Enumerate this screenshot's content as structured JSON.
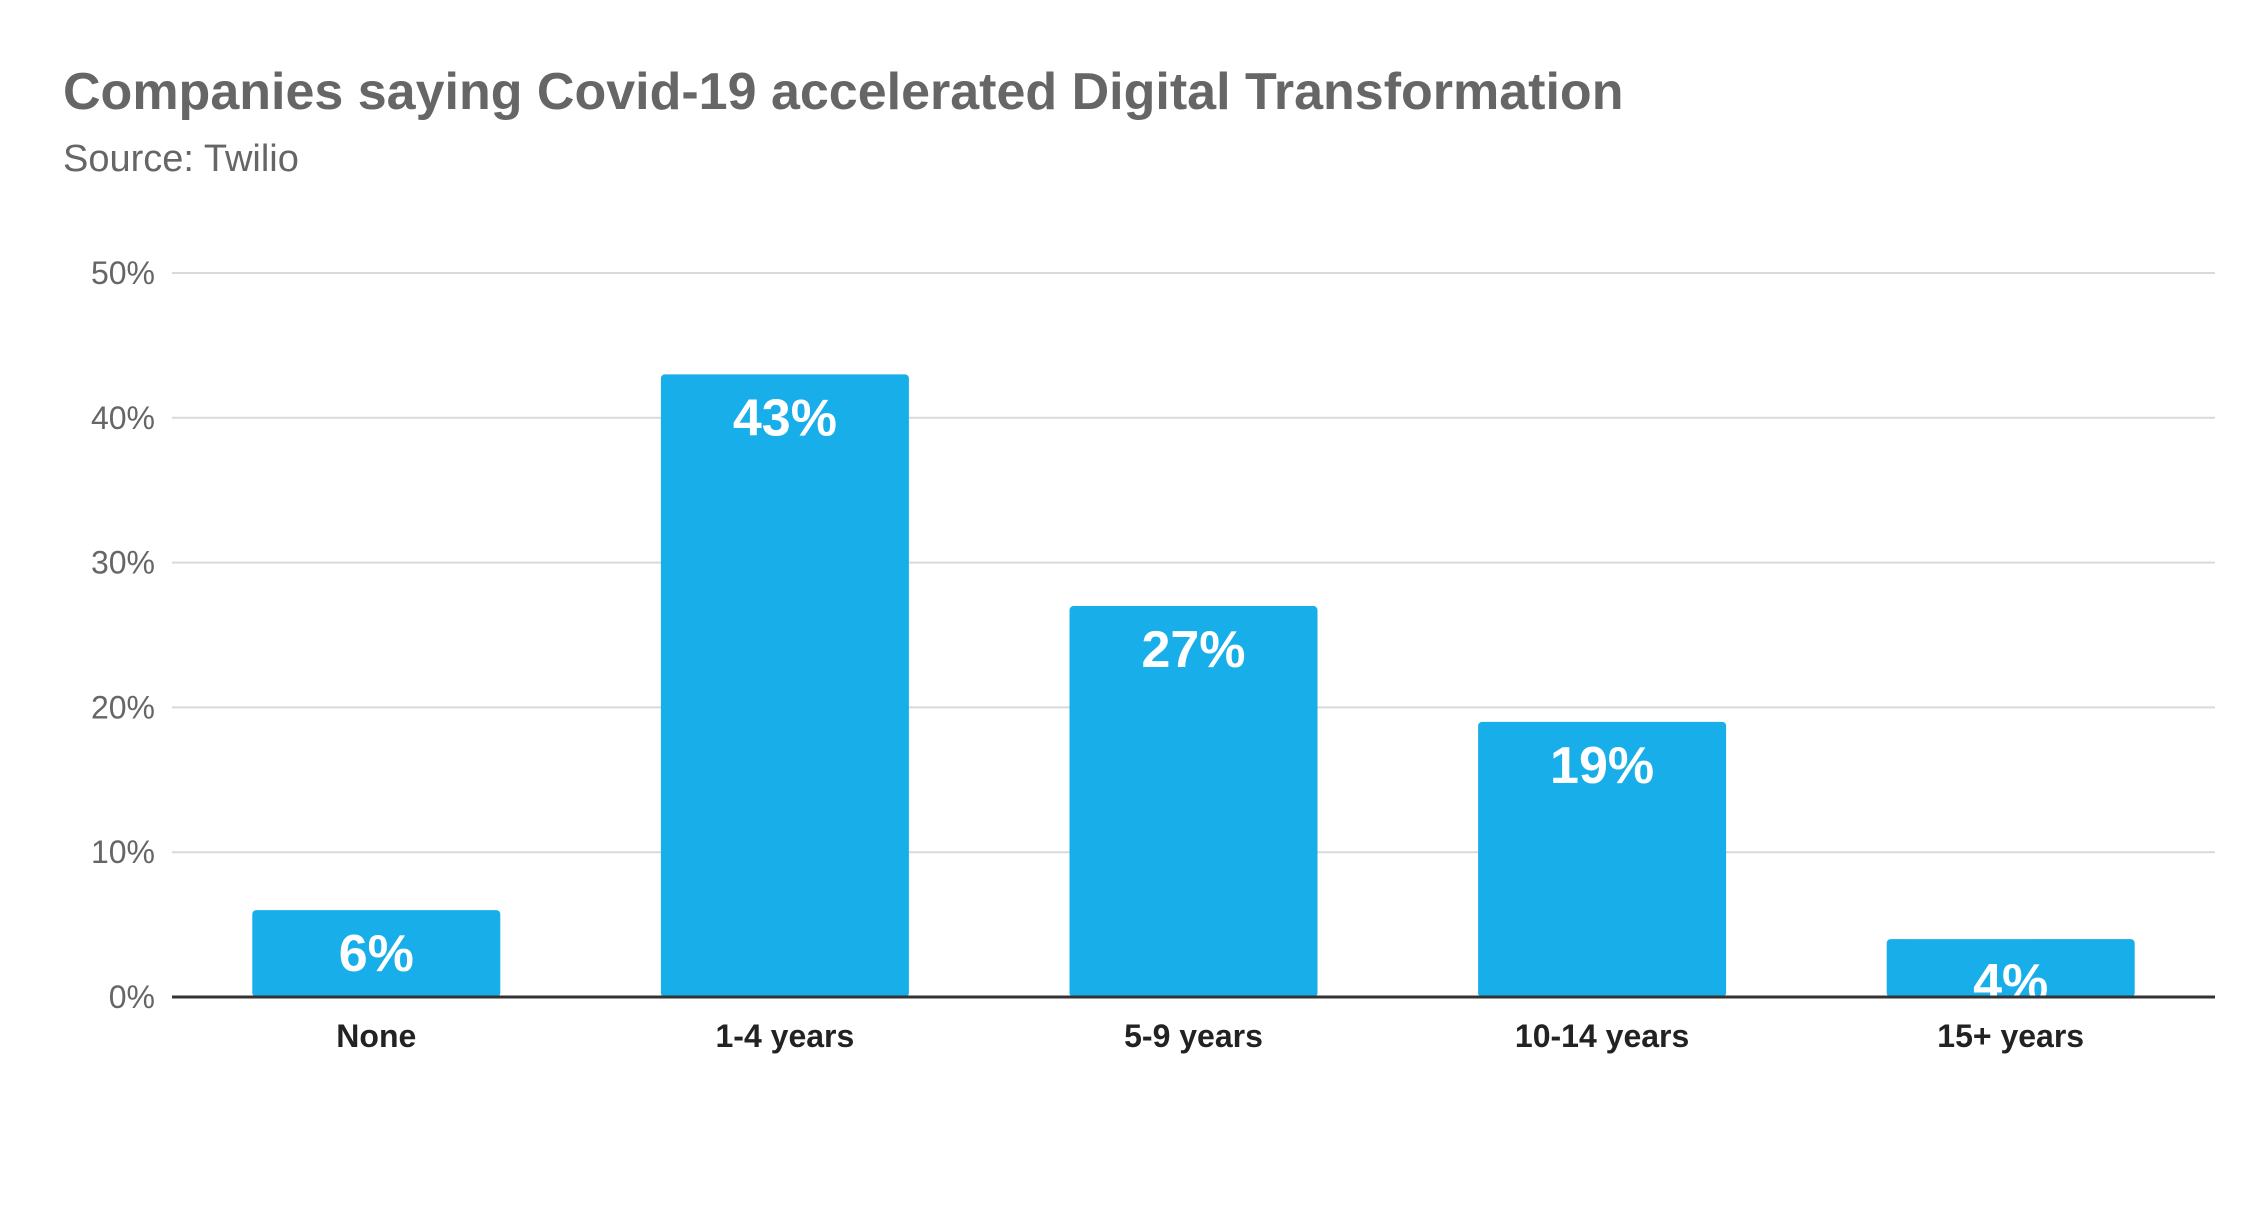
{
  "chart_data": {
    "type": "bar",
    "title": "Companies saying Covid-19 accelerated Digital Transformation",
    "subtitle": "Source: Twilio",
    "categories": [
      "None",
      "1-4 years",
      "5-9 years",
      "10-14 years",
      "15+ years"
    ],
    "values": [
      6,
      43,
      27,
      19,
      4
    ],
    "data_labels": [
      "6%",
      "43%",
      "27%",
      "19%",
      "4%"
    ],
    "ylim": [
      0,
      50
    ],
    "yticks": [
      "0%",
      "10%",
      "20%",
      "30%",
      "40%",
      "50%"
    ],
    "grid": true,
    "legend": "none",
    "xlabel": "",
    "ylabel": ""
  },
  "colors": {
    "bar": "#18aeea",
    "grid": "#d9d9d9",
    "axis": "#333333",
    "title": "#666666",
    "tick": "#666666",
    "category": "#222222",
    "label": "#ffffff"
  }
}
